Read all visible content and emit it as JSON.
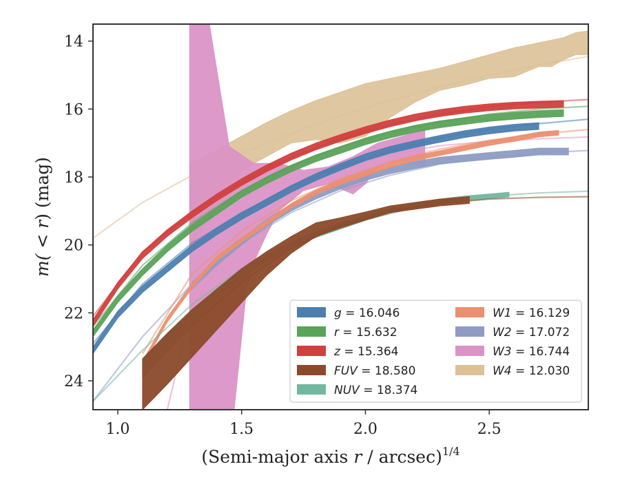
{
  "chart_data": {
    "type": "line",
    "xlabel": "(Semi-major axis r / arcsec)",
    "xlabel_parts": {
      "pre": "(Semi-major axis ",
      "var": "r",
      "post": " / arcsec)",
      "sup": "1/4"
    },
    "ylabel_parts": {
      "pre": "m(",
      "mid": " < ",
      "var": "r",
      "post": ") (mag)"
    },
    "xlim": [
      0.9,
      2.9
    ],
    "ylim": [
      24.85,
      13.5
    ],
    "y_inverted": true,
    "xticks": [
      1.0,
      1.5,
      2.0,
      2.5
    ],
    "xtick_labels": [
      "1.0",
      "1.5",
      "2.0",
      "2.5"
    ],
    "yticks": [
      14,
      16,
      18,
      20,
      22,
      24
    ],
    "ytick_labels": [
      "14",
      "16",
      "18",
      "20",
      "22",
      "24"
    ],
    "grid": false,
    "legend_position": "lower-right",
    "series": [
      {
        "name": "g",
        "value": "16.046",
        "color": "#4c7fb0",
        "band": {
          "x": [
            0.9,
            1.0,
            1.1,
            1.2,
            1.3,
            1.4,
            1.5,
            1.6,
            1.7,
            1.8,
            1.9,
            2.0,
            2.1,
            2.2,
            2.3,
            2.4,
            2.5,
            2.6,
            2.7
          ],
          "y": [
            23.1,
            22.05,
            21.3,
            20.7,
            20.1,
            19.6,
            19.15,
            18.75,
            18.35,
            18.0,
            17.7,
            17.42,
            17.2,
            17.03,
            16.88,
            16.74,
            16.63,
            16.55,
            16.5
          ],
          "hw": 0.1
        },
        "model": {
          "x": [
            0.9,
            1.1,
            1.3,
            1.5,
            1.7,
            1.9,
            2.1,
            2.3,
            2.5,
            2.7,
            2.9
          ],
          "y": [
            22.9,
            21.15,
            19.95,
            19.05,
            18.3,
            17.7,
            17.22,
            16.86,
            16.6,
            16.43,
            16.3
          ]
        }
      },
      {
        "name": "r",
        "value": "15.632",
        "color": "#5aa35a",
        "band": {
          "x": [
            0.9,
            1.0,
            1.1,
            1.2,
            1.3,
            1.4,
            1.5,
            1.6,
            1.7,
            1.8,
            1.9,
            2.0,
            2.1,
            2.2,
            2.3,
            2.4,
            2.5,
            2.6,
            2.7,
            2.8
          ],
          "y": [
            22.6,
            21.6,
            20.8,
            20.1,
            19.5,
            19.0,
            18.5,
            18.1,
            17.75,
            17.45,
            17.2,
            16.95,
            16.75,
            16.58,
            16.45,
            16.35,
            16.26,
            16.2,
            16.15,
            16.12
          ],
          "hw": 0.1
        },
        "model": {
          "x": [
            0.9,
            1.1,
            1.3,
            1.5,
            1.7,
            1.9,
            2.1,
            2.3,
            2.5,
            2.7,
            2.9
          ],
          "y": [
            22.4,
            20.6,
            19.35,
            18.4,
            17.68,
            17.12,
            16.7,
            16.38,
            16.15,
            16.0,
            15.92
          ]
        }
      },
      {
        "name": "z",
        "value": "15.364",
        "color": "#d1403e",
        "band": {
          "x": [
            0.9,
            1.0,
            1.1,
            1.2,
            1.3,
            1.4,
            1.5,
            1.6,
            1.7,
            1.8,
            1.9,
            2.0,
            2.1,
            2.2,
            2.3,
            2.4,
            2.5,
            2.6,
            2.7,
            2.8
          ],
          "y": [
            22.3,
            21.2,
            20.3,
            19.65,
            19.1,
            18.6,
            18.15,
            17.75,
            17.4,
            17.1,
            16.85,
            16.62,
            16.42,
            16.25,
            16.12,
            16.02,
            15.95,
            15.9,
            15.87,
            15.85
          ],
          "hw": 0.1
        },
        "model": {
          "x": [
            0.9,
            1.1,
            1.3,
            1.5,
            1.7,
            1.9,
            2.1,
            2.3,
            2.5,
            2.7,
            2.9
          ],
          "y": [
            22.1,
            20.2,
            19.05,
            18.15,
            17.42,
            16.87,
            16.45,
            16.15,
            15.93,
            15.8,
            15.72
          ]
        }
      },
      {
        "name": "FUV",
        "value": "18.580",
        "color": "#8b4a2a",
        "band": {
          "x": [
            1.1,
            1.2,
            1.3,
            1.4,
            1.5,
            1.6,
            1.7,
            1.8,
            1.9,
            2.0,
            2.1,
            2.2,
            2.3,
            2.42
          ],
          "y": [
            24.1,
            23.35,
            22.6,
            21.9,
            21.2,
            20.55,
            20.0,
            19.55,
            19.35,
            19.15,
            18.95,
            18.85,
            18.75,
            18.68
          ],
          "hw": [
            0.75,
            0.75,
            0.7,
            0.6,
            0.5,
            0.35,
            0.25,
            0.2,
            0.15,
            0.12,
            0.1,
            0.1,
            0.1,
            0.1
          ]
        },
        "model": {
          "x": [
            1.1,
            1.3,
            1.5,
            1.7,
            1.9,
            2.1,
            2.3,
            2.5,
            2.7,
            2.9
          ],
          "y": [
            23.9,
            22.35,
            21.1,
            20.1,
            19.42,
            19.0,
            18.78,
            18.65,
            18.6,
            18.58
          ]
        }
      },
      {
        "name": "NUV",
        "value": "18.374",
        "color": "#72b8a0",
        "band": {
          "x": [
            1.1,
            1.2,
            1.3,
            1.4,
            1.5,
            1.6,
            1.7,
            1.8,
            1.9,
            2.0,
            2.1,
            2.2,
            2.3,
            2.4,
            2.5,
            2.58
          ],
          "y": [
            23.6,
            22.85,
            22.1,
            21.4,
            20.85,
            20.4,
            20.0,
            19.7,
            19.45,
            19.2,
            19.0,
            18.85,
            18.72,
            18.63,
            18.57,
            18.52
          ],
          "hw": [
            0.25,
            0.2,
            0.15,
            0.12,
            0.1,
            0.1,
            0.08,
            0.08,
            0.08,
            0.08,
            0.08,
            0.07,
            0.07,
            0.07,
            0.07,
            0.07
          ]
        },
        "model": {
          "x": [
            0.9,
            1.1,
            1.3,
            1.5,
            1.7,
            1.9,
            2.1,
            2.3,
            2.5,
            2.7,
            2.9
          ],
          "y": [
            24.6,
            23.1,
            21.75,
            20.7,
            19.92,
            19.35,
            18.97,
            18.72,
            18.56,
            18.47,
            18.42
          ]
        }
      },
      {
        "name": "W1",
        "value": "16.129",
        "color": "#eb9070",
        "band": {
          "x": [
            1.1,
            1.2,
            1.3,
            1.4,
            1.5,
            1.6,
            1.7,
            1.8,
            1.9,
            2.0,
            2.1,
            2.2,
            2.3,
            2.4,
            2.5,
            2.6,
            2.7,
            2.78
          ],
          "y": [
            23.5,
            22.2,
            21.2,
            20.4,
            19.85,
            19.35,
            18.85,
            18.45,
            18.15,
            17.9,
            17.65,
            17.45,
            17.3,
            17.15,
            17.0,
            16.88,
            16.75,
            16.7
          ],
          "hw": 0.07
        },
        "model": {
          "x": [
            1.1,
            1.3,
            1.5,
            1.7,
            1.9,
            2.1,
            2.3,
            2.5,
            2.7,
            2.9
          ],
          "y": [
            23.2,
            20.85,
            19.6,
            18.7,
            18.05,
            17.55,
            17.18,
            16.92,
            16.74,
            16.6
          ]
        }
      },
      {
        "name": "W2",
        "value": "17.072",
        "color": "#8e9cc4",
        "band": {
          "x": [
            1.3,
            1.4,
            1.5,
            1.6,
            1.7,
            1.8,
            1.9,
            2.0,
            2.1,
            2.2,
            2.3,
            2.4,
            2.5,
            2.6,
            2.7,
            2.82
          ],
          "y": [
            21.2,
            20.5,
            19.9,
            19.35,
            18.9,
            18.55,
            18.25,
            18.0,
            17.8,
            17.65,
            17.52,
            17.45,
            17.38,
            17.32,
            17.25,
            17.25
          ],
          "hw": 0.1
        },
        "model": {
          "x": [
            0.9,
            1.1,
            1.3,
            1.5,
            1.7,
            1.9,
            2.1,
            2.3,
            2.5,
            2.7,
            2.9
          ],
          "y": [
            24.6,
            22.7,
            21.15,
            19.95,
            19.05,
            18.4,
            17.95,
            17.62,
            17.42,
            17.3,
            17.22
          ]
        }
      },
      {
        "name": "W3",
        "value": "16.744",
        "color": "#db93c6",
        "poly": {
          "upper": [
            [
              1.29,
              13.5
            ],
            [
              1.37,
              13.5
            ],
            [
              1.45,
              17.1
            ],
            [
              1.55,
              17.6
            ],
            [
              1.65,
              17.6
            ],
            [
              1.75,
              17.8
            ],
            [
              1.85,
              17.7
            ],
            [
              1.95,
              17.4
            ],
            [
              2.05,
              17.0
            ],
            [
              2.15,
              16.8
            ],
            [
              2.24,
              16.6
            ]
          ],
          "lower": [
            [
              2.24,
              17.7
            ],
            [
              2.15,
              17.5
            ],
            [
              2.05,
              17.7
            ],
            [
              2.0,
              18.2
            ],
            [
              1.95,
              18.5
            ],
            [
              1.85,
              18.2
            ],
            [
              1.75,
              18.4
            ],
            [
              1.65,
              19.0
            ],
            [
              1.6,
              19.7
            ],
            [
              1.55,
              20.5
            ],
            [
              1.52,
              21.3
            ],
            [
              1.47,
              24.85
            ],
            [
              1.29,
              24.85
            ]
          ]
        },
        "model": {
          "x": [
            1.2,
            1.3,
            1.5,
            1.7,
            1.9,
            2.1,
            2.3,
            2.5,
            2.7,
            2.9
          ],
          "y": [
            24.85,
            21.8,
            19.6,
            18.45,
            17.75,
            17.32,
            17.08,
            16.95,
            16.88,
            16.82
          ]
        }
      },
      {
        "name": "W4",
        "value": "12.030",
        "color": "#dcc197",
        "poly": {
          "upper": [
            [
              1.29,
              17.6
            ],
            [
              1.4,
              17.2
            ],
            [
              1.5,
              16.8
            ],
            [
              1.6,
              16.4
            ],
            [
              1.7,
              16.05
            ],
            [
              1.8,
              15.75
            ],
            [
              1.9,
              15.5
            ],
            [
              2.0,
              15.25
            ],
            [
              2.1,
              15.1
            ],
            [
              2.2,
              14.95
            ],
            [
              2.3,
              14.8
            ],
            [
              2.4,
              14.6
            ],
            [
              2.5,
              14.4
            ],
            [
              2.6,
              14.2
            ],
            [
              2.7,
              14.05
            ],
            [
              2.8,
              13.9
            ],
            [
              2.85,
              13.75
            ],
            [
              2.9,
              13.7
            ]
          ],
          "lower": [
            [
              2.9,
              14.4
            ],
            [
              2.85,
              14.4
            ],
            [
              2.8,
              14.55
            ],
            [
              2.75,
              14.75
            ],
            [
              2.7,
              14.75
            ],
            [
              2.6,
              15.05
            ],
            [
              2.5,
              15.1
            ],
            [
              2.4,
              15.3
            ],
            [
              2.3,
              15.45
            ],
            [
              2.2,
              15.8
            ],
            [
              2.1,
              16.25
            ],
            [
              2.0,
              16.8
            ],
            [
              1.9,
              17.0
            ],
            [
              1.8,
              16.9
            ],
            [
              1.7,
              17.0
            ],
            [
              1.6,
              17.4
            ],
            [
              1.5,
              17.8
            ],
            [
              1.45,
              18.5
            ],
            [
              1.4,
              19.0
            ],
            [
              1.3,
              20.0
            ],
            [
              1.29,
              20.0
            ]
          ]
        },
        "model": {
          "x": [
            0.9,
            1.1,
            1.3,
            1.5,
            1.7,
            1.9,
            2.1,
            2.3,
            2.5,
            2.7,
            2.9
          ],
          "y": [
            19.8,
            18.75,
            17.95,
            17.3,
            16.72,
            16.2,
            15.75,
            15.35,
            15.0,
            14.7,
            14.45
          ]
        }
      }
    ],
    "legend_columns": [
      [
        "g",
        "r",
        "z",
        "FUV",
        "NUV"
      ],
      [
        "W1",
        "W2",
        "W3",
        "W4"
      ]
    ]
  }
}
